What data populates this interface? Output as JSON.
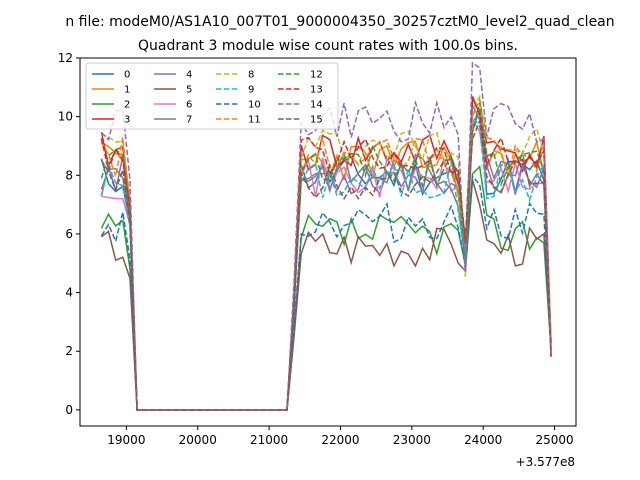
{
  "chart_data": {
    "type": "line",
    "suptitle": "n file: modeM0/AS1A10_007T01_9000004350_30257cztM0_level2_quad_clean",
    "title": "Quadrant 3 module wise count rates with 100.0s bins.",
    "xlabel": "",
    "ylabel": "",
    "offset_label": "+3.577e8",
    "xlim": [
      18350,
      25300
    ],
    "ylim": [
      -0.55,
      12
    ],
    "xticks": [
      19000,
      20000,
      21000,
      22000,
      23000,
      24000,
      25000
    ],
    "xtick_labels": [
      "19000",
      "20000",
      "21000",
      "22000",
      "23000",
      "24000",
      "25000"
    ],
    "yticks": [
      0,
      2,
      4,
      6,
      8,
      10,
      12
    ],
    "ytick_labels": [
      "0",
      "2",
      "4",
      "6",
      "8",
      "10",
      "12"
    ],
    "grid": false,
    "legend_position": "top-left",
    "legend_columns": 4,
    "series": [
      {
        "name": "0",
        "color": "#1f77b4",
        "dash": false,
        "base": 8.0,
        "seed": 11
      },
      {
        "name": "1",
        "color": "#ff7f0e",
        "dash": false,
        "base": 8.5,
        "seed": 23
      },
      {
        "name": "2",
        "color": "#2ca02c",
        "dash": false,
        "base": 6.0,
        "seed": 37
      },
      {
        "name": "3",
        "color": "#d62728",
        "dash": false,
        "base": 8.8,
        "seed": 41
      },
      {
        "name": "4",
        "color": "#9467bd",
        "dash": false,
        "base": 8.0,
        "seed": 53
      },
      {
        "name": "5",
        "color": "#8c564b",
        "dash": false,
        "base": 5.6,
        "seed": 67
      },
      {
        "name": "6",
        "color": "#e377c2",
        "dash": false,
        "base": 7.9,
        "seed": 71
      },
      {
        "name": "7",
        "color": "#7f7f7f",
        "dash": false,
        "base": 8.1,
        "seed": 83
      },
      {
        "name": "8",
        "color": "#bcbd22",
        "dash": true,
        "base": 9.0,
        "seed": 97
      },
      {
        "name": "9",
        "color": "#17becf",
        "dash": true,
        "base": 7.8,
        "seed": 101
      },
      {
        "name": "10",
        "color": "#1f77b4",
        "dash": true,
        "base": 6.4,
        "seed": 113
      },
      {
        "name": "11",
        "color": "#ff7f0e",
        "dash": true,
        "base": 8.6,
        "seed": 127
      },
      {
        "name": "12",
        "color": "#2ca02c",
        "dash": true,
        "base": 8.3,
        "seed": 131
      },
      {
        "name": "13",
        "color": "#d62728",
        "dash": true,
        "base": 8.7,
        "seed": 139
      },
      {
        "name": "14",
        "color": "#9467bd",
        "dash": true,
        "base": 9.8,
        "seed": 149
      },
      {
        "name": "15",
        "color": "#8c564b",
        "dash": true,
        "base": 7.9,
        "seed": 151
      }
    ],
    "profile": {
      "x_start": 18650,
      "x_step": 100,
      "x_end": 25000,
      "gap_start": 19200,
      "gap_end": 21250
    }
  }
}
